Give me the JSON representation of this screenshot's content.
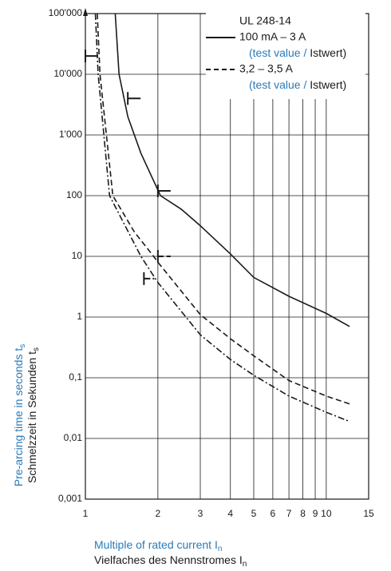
{
  "chart_data": {
    "type": "line",
    "legend_title": "UL 248-14",
    "xlabel": {
      "text": "Multiple of rated current I",
      "sub": "n"
    },
    "xlabel_de": {
      "text": "Vielfaches des Nennstromes I",
      "sub": "n"
    },
    "ylabel": {
      "text": "Pre-arcing time in seconds t",
      "sub": "s"
    },
    "ylabel_de": {
      "text": "Schmelzzeit in Sekunden t",
      "sub": "s"
    },
    "xlog": true,
    "ylog": true,
    "grid": true,
    "xlim": [
      1,
      15
    ],
    "ylim": [
      0.001,
      100000
    ],
    "xticks": [
      1,
      2,
      3,
      4,
      5,
      6,
      7,
      8,
      9,
      10,
      15
    ],
    "yticks": [
      {
        "value": 100000,
        "label": "100'000"
      },
      {
        "value": 10000,
        "label": "10'000"
      },
      {
        "value": 1000,
        "label": "1'000"
      },
      100,
      10,
      1,
      {
        "value": 0.1,
        "label": "0,1"
      },
      {
        "value": 0.01,
        "label": "0,01"
      },
      {
        "value": 0.001,
        "label": "0,001"
      }
    ],
    "series": [
      {
        "name": "100 mA  – 3 A",
        "note_en": "(test value /",
        "note_de": "Istwert)",
        "color": "#1a1a1a",
        "dash": "solid",
        "x": [
          1.33,
          1.38,
          1.5,
          1.7,
          2.05,
          2.5,
          3,
          4,
          5,
          7,
          10,
          12.5
        ],
        "values": [
          100000,
          10000,
          2000,
          500,
          100,
          60,
          32,
          11,
          4.5,
          2.2,
          1.15,
          0.7
        ],
        "test_x": [
          1,
          1.5,
          2
        ],
        "test_y": [
          20000,
          4000,
          120
        ]
      },
      {
        "name": "3,2 – 3,5 A",
        "note_en": "(test value /",
        "note_de": "Istwert)",
        "color": "#1a1a1a",
        "dash": "dashed",
        "x": [
          1.12,
          1.15,
          1.3,
          1.6,
          1.92,
          2,
          3,
          4,
          5,
          7,
          10,
          12.5
        ],
        "values": [
          100000,
          10000,
          100,
          25,
          10,
          8,
          1.1,
          0.44,
          0.23,
          0.09,
          0.05,
          0.037
        ],
        "test_x": [
          2
        ],
        "test_y": [
          10
        ]
      },
      {
        "color": "#1a1a1a",
        "dash": "dashdot",
        "x": [
          1.1,
          1.13,
          1.26,
          1.7,
          2,
          3,
          4,
          5,
          7,
          10,
          12.5
        ],
        "values": [
          100000,
          10000,
          100,
          10,
          3.7,
          0.51,
          0.2,
          0.11,
          0.05,
          0.027,
          0.019
        ],
        "test_x": [
          1.75
        ],
        "test_y": [
          4.3
        ]
      }
    ]
  }
}
